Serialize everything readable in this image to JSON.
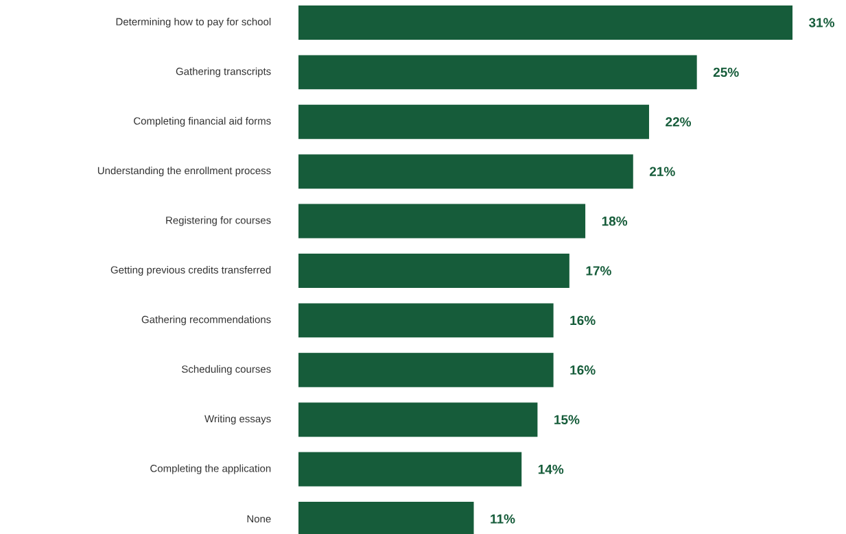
{
  "chart_data": {
    "type": "bar",
    "orientation": "horizontal",
    "color": "#165c3a",
    "categories": [
      "Determining how to pay for school",
      "Gathering transcripts",
      "Completing financial aid forms",
      "Understanding the enrollment process",
      "Registering for courses",
      "Getting previous credits transferred",
      "Gathering recommendations",
      "Scheduling courses",
      "Writing essays",
      "Completing the application",
      "None"
    ],
    "values": [
      31,
      25,
      22,
      21,
      18,
      17,
      16,
      16,
      15,
      14,
      11
    ],
    "value_labels": [
      "31%",
      "25%",
      "22%",
      "21%",
      "18%",
      "17%",
      "16%",
      "16%",
      "15%",
      "14%",
      "11%"
    ]
  }
}
